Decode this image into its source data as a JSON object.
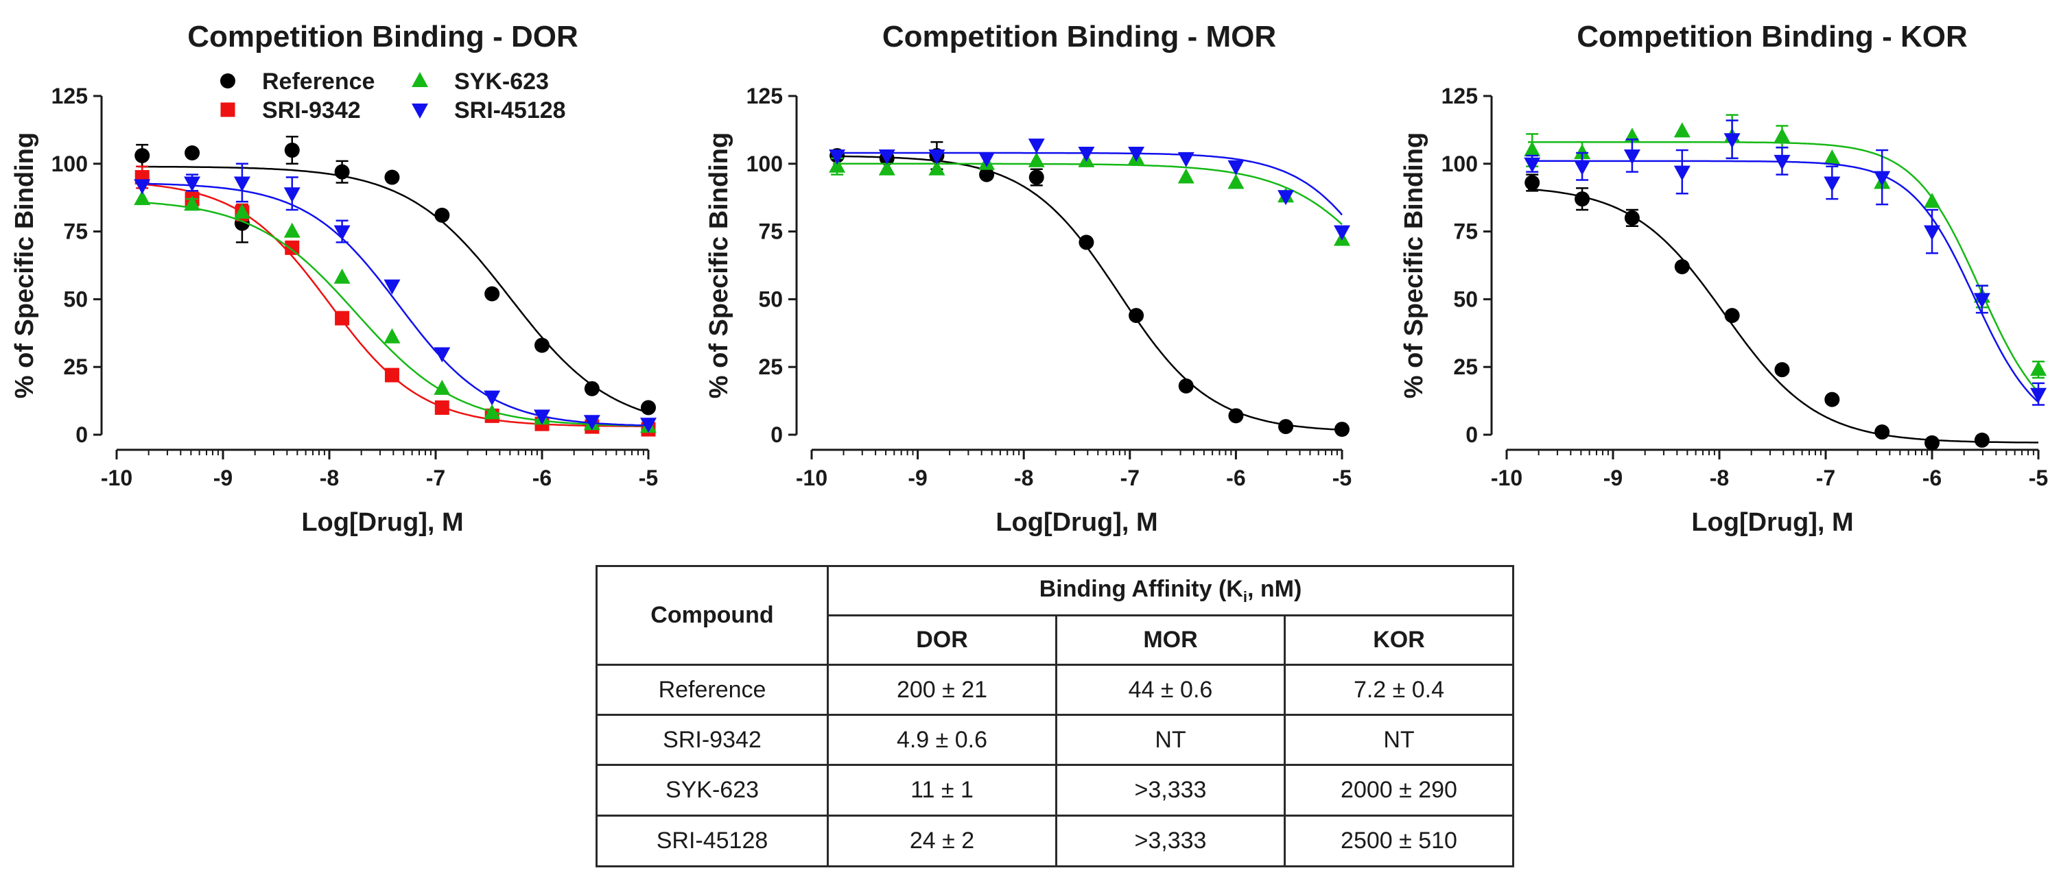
{
  "chart_data": [
    {
      "type": "scatter",
      "title": "Competition Binding - DOR",
      "xlabel": "Log[Drug], M",
      "ylabel": "% of Specific Binding",
      "xlim": [
        -10,
        -5
      ],
      "ylim": [
        0,
        125
      ],
      "xticks": [
        -10,
        -9,
        -8,
        -7,
        -6,
        -5
      ],
      "yticks": [
        0,
        25,
        50,
        75,
        100,
        125
      ],
      "xtick_labels": [
        "-10",
        "-9",
        "-8",
        "-7",
        "-6",
        "-5"
      ],
      "ytick_labels": [
        "0",
        "25",
        "50",
        "75",
        "100",
        "125"
      ],
      "legend_position": "top",
      "series": [
        {
          "name": "Reference",
          "color": "#000000",
          "marker": "circle",
          "x": [
            -9.76,
            -9.29,
            -8.82,
            -8.35,
            -7.88,
            -7.41,
            -6.94,
            -6.47,
            -6.0,
            -5.53,
            -5.0
          ],
          "y": [
            103,
            104,
            78,
            105,
            97,
            95,
            81,
            52,
            33,
            17,
            10
          ],
          "err": [
            4,
            0,
            7,
            5,
            4,
            0,
            0,
            0,
            0,
            0,
            0
          ],
          "fit": {
            "top": 99,
            "bottom": 2,
            "logIC50": -6.3,
            "hill": -0.9
          }
        },
        {
          "name": "SRI-9342",
          "color": "#ee1111",
          "marker": "square",
          "x": [
            -9.76,
            -9.29,
            -8.82,
            -8.35,
            -7.88,
            -7.41,
            -6.94,
            -6.47,
            -6.0,
            -5.53,
            -5.0
          ],
          "y": [
            95,
            87,
            82,
            69,
            43,
            22,
            10,
            7,
            4,
            3,
            2
          ],
          "err": [
            4,
            3,
            3,
            2,
            0,
            0,
            0,
            0,
            0,
            0,
            0
          ],
          "fit": {
            "top": 94,
            "bottom": 3,
            "logIC50": -8.0,
            "hill": -1.0
          }
        },
        {
          "name": "SYK-623",
          "color": "#16b816",
          "marker": "triangle-up",
          "x": [
            -9.76,
            -9.29,
            -8.82,
            -8.35,
            -7.88,
            -7.41,
            -6.94,
            -6.47,
            -6.0,
            -5.53,
            -5.0
          ],
          "y": [
            87,
            85,
            82,
            75,
            58,
            36,
            17,
            8,
            6,
            4,
            3
          ],
          "err": [
            0,
            2,
            0,
            0,
            0,
            0,
            0,
            0,
            0,
            0,
            0
          ],
          "fit": {
            "top": 87,
            "bottom": 3,
            "logIC50": -7.75,
            "hill": -0.9
          }
        },
        {
          "name": "SRI-45128",
          "color": "#1111ee",
          "marker": "triangle-down",
          "x": [
            -9.76,
            -9.29,
            -8.82,
            -8.35,
            -7.88,
            -7.41,
            -6.94,
            -6.47,
            -6.0,
            -5.53,
            -5.0
          ],
          "y": [
            92,
            93,
            93,
            89,
            75,
            55,
            30,
            14,
            7,
            5,
            4
          ],
          "err": [
            0,
            3,
            7,
            6,
            4,
            0,
            0,
            0,
            0,
            0,
            0
          ],
          "fit": {
            "top": 93,
            "bottom": 3,
            "logIC50": -7.35,
            "hill": -1.0
          }
        }
      ]
    },
    {
      "type": "scatter",
      "title": "Competition Binding - MOR",
      "xlabel": "Log[Drug], M",
      "ylabel": "% of Specific Binding",
      "xlim": [
        -10,
        -5
      ],
      "ylim": [
        0,
        125
      ],
      "xticks": [
        -10,
        -9,
        -8,
        -7,
        -6,
        -5
      ],
      "yticks": [
        0,
        25,
        50,
        75,
        100,
        125
      ],
      "xtick_labels": [
        "-10",
        "-9",
        "-8",
        "-7",
        "-6",
        "-5"
      ],
      "ytick_labels": [
        "0",
        "25",
        "50",
        "75",
        "100",
        "125"
      ],
      "series": [
        {
          "name": "Reference",
          "color": "#000000",
          "marker": "circle",
          "x": [
            -9.76,
            -9.29,
            -8.82,
            -8.35,
            -7.88,
            -7.41,
            -6.94,
            -6.47,
            -6.0,
            -5.53,
            -5.0
          ],
          "y": [
            103,
            102,
            103,
            96,
            95,
            71,
            44,
            18,
            7,
            3,
            2
          ],
          "err": [
            0,
            0,
            5,
            0,
            3,
            0,
            0,
            0,
            0,
            0,
            0
          ],
          "fit": {
            "top": 103,
            "bottom": 1,
            "logIC50": -7.1,
            "hill": -1.0
          }
        },
        {
          "name": "SYK-623",
          "color": "#16b816",
          "marker": "triangle-up",
          "x": [
            -9.76,
            -9.29,
            -8.82,
            -8.35,
            -7.88,
            -7.41,
            -6.94,
            -6.47,
            -6.0,
            -5.53,
            -5.0
          ],
          "y": [
            99,
            98,
            98,
            100,
            101,
            101,
            102,
            95,
            93,
            88,
            72
          ],
          "err": [
            3,
            0,
            0,
            0,
            0,
            0,
            0,
            0,
            0,
            0,
            0
          ],
          "fit": {
            "top": 100,
            "bottom": 0,
            "logIC50": -4.4,
            "hill": -0.9
          }
        },
        {
          "name": "SRI-45128",
          "color": "#1111ee",
          "marker": "triangle-down",
          "x": [
            -9.76,
            -9.29,
            -8.82,
            -8.35,
            -7.88,
            -7.41,
            -6.94,
            -6.47,
            -6.0,
            -5.53,
            -5.0
          ],
          "y": [
            103,
            103,
            103,
            102,
            107,
            104,
            104,
            102,
            99,
            88,
            75
          ],
          "err": [
            0,
            0,
            0,
            0,
            0,
            0,
            0,
            0,
            0,
            0,
            0
          ],
          "fit": {
            "top": 104,
            "bottom": 0,
            "logIC50": -4.5,
            "hill": -1.1
          }
        }
      ]
    },
    {
      "type": "scatter",
      "title": "Competition Binding - KOR",
      "xlabel": "Log[Drug], M",
      "ylabel": "% of Specific Binding",
      "xlim": [
        -10,
        -5
      ],
      "ylim": [
        0,
        125
      ],
      "xticks": [
        -10,
        -9,
        -8,
        -7,
        -6,
        -5
      ],
      "yticks": [
        0,
        25,
        50,
        75,
        100,
        125
      ],
      "xtick_labels": [
        "-10",
        "-9",
        "-8",
        "-7",
        "-6",
        "-5"
      ],
      "ytick_labels": [
        "0",
        "25",
        "50",
        "75",
        "100",
        "125"
      ],
      "series": [
        {
          "name": "Reference",
          "color": "#000000",
          "marker": "circle",
          "x": [
            -9.76,
            -9.29,
            -8.82,
            -8.35,
            -7.88,
            -7.41,
            -6.94,
            -6.47,
            -6.0,
            -5.53,
            -5.0
          ],
          "y": [
            93,
            87,
            80,
            62,
            44,
            24,
            13,
            1,
            -3,
            -2,
            null
          ],
          "err": [
            3,
            4,
            3,
            0,
            0,
            0,
            0,
            0,
            0,
            0,
            0
          ],
          "fit": {
            "top": 92,
            "bottom": -3,
            "logIC50": -7.95,
            "hill": -1.0
          }
        },
        {
          "name": "SYK-623",
          "color": "#16b816",
          "marker": "triangle-up",
          "x": [
            -9.76,
            -9.29,
            -8.82,
            -8.35,
            -7.88,
            -7.41,
            -6.94,
            -6.47,
            -6.0,
            -5.53,
            -5.0
          ],
          "y": [
            105,
            104,
            110,
            112,
            110,
            110,
            102,
            93,
            86,
            51,
            24
          ],
          "err": [
            6,
            4,
            0,
            0,
            8,
            4,
            0,
            0,
            0,
            4,
            3
          ],
          "fit": {
            "top": 108,
            "bottom": 0,
            "logIC50": -5.55,
            "hill": -1.4
          }
        },
        {
          "name": "SRI-45128",
          "color": "#1111ee",
          "marker": "triangle-down",
          "x": [
            -9.76,
            -9.29,
            -8.82,
            -8.35,
            -7.88,
            -7.41,
            -6.94,
            -6.47,
            -6.0,
            -5.53,
            -5.0
          ],
          "y": [
            100,
            99,
            103,
            97,
            109,
            101,
            93,
            95,
            75,
            50,
            15
          ],
          "err": [
            3,
            5,
            6,
            8,
            7,
            5,
            6,
            10,
            8,
            5,
            4
          ],
          "fit": {
            "top": 101,
            "bottom": 0,
            "logIC50": -5.6,
            "hill": -1.45
          }
        }
      ]
    },
    {
      "type": "table",
      "columns": [
        "Compound",
        "DOR",
        "MOR",
        "KOR"
      ],
      "rows": [
        [
          "Reference",
          "200 ± 21",
          "44 ± 0.6",
          "7.2 ± 0.4"
        ],
        [
          "SRI-9342",
          "4.9 ± 0.6",
          "NT",
          "NT"
        ],
        [
          "SYK-623",
          "11 ± 1",
          ">3,333",
          "2000 ± 290"
        ],
        [
          "SRI-45128",
          "24 ± 2",
          ">3,333",
          "2500 ± 510"
        ]
      ]
    }
  ],
  "legend": {
    "items": [
      {
        "label": "Reference",
        "color": "#000000",
        "marker": "circle"
      },
      {
        "label": "SYK-623",
        "color": "#16b816",
        "marker": "triangle-up"
      },
      {
        "label": "SRI-9342",
        "color": "#ee1111",
        "marker": "square"
      },
      {
        "label": "SRI-45128",
        "color": "#1111ee",
        "marker": "triangle-down"
      }
    ]
  },
  "table": {
    "compound_header": "Compound",
    "affinity_header_main": "Binding Affinity (K",
    "affinity_header_sub": "i",
    "affinity_header_tail": ", nM)",
    "receptor_headers": [
      "DOR",
      "MOR",
      "KOR"
    ],
    "rows": [
      {
        "compound": "Reference",
        "dor": "200 ± 21",
        "mor": "44 ± 0.6",
        "kor": "7.2 ± 0.4"
      },
      {
        "compound": "SRI-9342",
        "dor": "4.9 ± 0.6",
        "mor": "NT",
        "kor": "NT"
      },
      {
        "compound": "SYK-623",
        "dor": "11 ± 1",
        "mor": ">3,333",
        "kor": "2000 ± 290"
      },
      {
        "compound": "SRI-45128",
        "dor": "24 ± 2",
        "mor": ">3,333",
        "kor": "2500 ± 510"
      }
    ]
  }
}
